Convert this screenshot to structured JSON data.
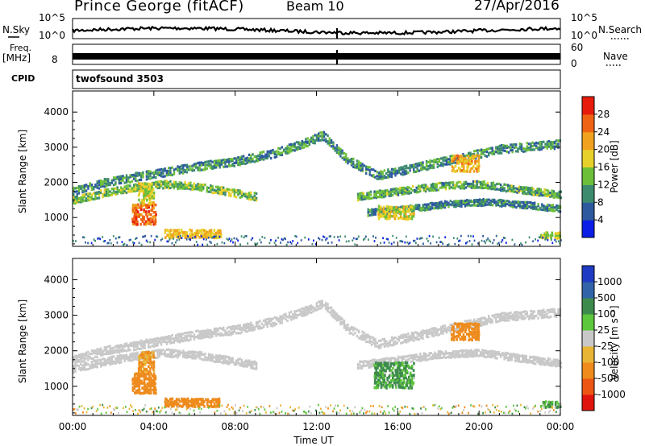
{
  "header": {
    "station": "Prince George (fitACF)",
    "beam": "Beam 10",
    "date": "27/Apr/2016"
  },
  "strips": {
    "nsky_label": "N.Sky",
    "nsky_ticks": [
      "10^5",
      "10^0"
    ],
    "nsearch_label": "N.Search",
    "nsearch_ticks": [
      "10^5",
      "10^0"
    ],
    "freq_label": "Freq.",
    "freq_unit": "[MHz]",
    "freq_ticks": [
      "8"
    ],
    "nave_label": "Nave",
    "nave_ticks": [
      "60",
      "0"
    ],
    "cpid_label": "CPID",
    "cpid_value": "twofsound 3503"
  },
  "axes": {
    "ylabel": "Slant Range [km]",
    "xlabel": "Time UT",
    "y_ticks": [
      "1000",
      "2000",
      "3000",
      "4000"
    ],
    "x_ticks": [
      "00:00",
      "04:00",
      "08:00",
      "12:00",
      "16:00",
      "20:00",
      "00:00"
    ]
  },
  "colorbars": {
    "power": {
      "label": "Power [dB]",
      "ticks": [
        "4",
        "8",
        "12",
        "16",
        "20",
        "24",
        "28"
      ],
      "colors": [
        "#0a1ee6",
        "#2d5a9e",
        "#3d8b6e",
        "#6dbf3a",
        "#e8d02a",
        "#f0a21e",
        "#ee6414",
        "#e61b0c"
      ]
    },
    "velocity": {
      "label": "Velocity [m s⁻¹]",
      "ticks": [
        "1000",
        "500",
        "100",
        "25",
        "-25",
        "-100",
        "-500",
        "-1000"
      ],
      "colors": [
        "#1f3bc4",
        "#3163a8",
        "#3d8b4c",
        "#5cc63c",
        "#c8c8c8",
        "#e9b534",
        "#ee8b1c",
        "#ec5514",
        "#e0140e"
      ]
    }
  },
  "chart_data": [
    {
      "type": "heatmap",
      "title": "Power",
      "xlabel": "Time UT",
      "ylabel": "Slant Range [km]",
      "xlim": [
        "00:00",
        "24:00"
      ],
      "ylim": [
        180,
        4600
      ],
      "colorbar_label": "Power [dB]",
      "colorbar_range": [
        0,
        32
      ],
      "bands": [
        {
          "x": [
            0.0,
            1.5,
            3.0,
            4.5,
            6.0,
            8.0,
            10.0,
            11.5,
            12.3,
            13.5,
            15.0,
            17.0,
            19.0,
            21.0,
            24.0
          ],
          "y": [
            1750,
            2000,
            2150,
            2300,
            2450,
            2600,
            2850,
            3150,
            3350,
            2650,
            2200,
            2450,
            2700,
            2950,
            3100
          ],
          "width_km": 260,
          "value": 10
        },
        {
          "x": [
            0.0,
            1.5,
            3.0,
            4.5,
            6.0,
            7.5,
            9.0
          ],
          "y": [
            1500,
            1700,
            1850,
            1950,
            1900,
            1750,
            1600
          ],
          "width_km": 230,
          "value": 14
        },
        {
          "x": [
            14.0,
            16.0,
            18.0,
            20.0,
            22.0,
            24.0
          ],
          "y": [
            1600,
            1750,
            1900,
            1950,
            1800,
            1650
          ],
          "width_km": 220,
          "value": 12
        },
        {
          "x": [
            14.5,
            16.5,
            18.5,
            20.5,
            22.5,
            24.0
          ],
          "y": [
            1150,
            1250,
            1400,
            1450,
            1350,
            1250
          ],
          "width_km": 200,
          "value": 9
        }
      ],
      "patches": [
        {
          "x": [
            2.9,
            4.1
          ],
          "y": [
            800,
            1400
          ],
          "value": 26
        },
        {
          "x": [
            3.2,
            4.0
          ],
          "y": [
            1400,
            2000
          ],
          "value": 17
        },
        {
          "x": [
            4.5,
            7.3
          ],
          "y": [
            420,
            680
          ],
          "value": 20
        },
        {
          "x": [
            15.0,
            16.8
          ],
          "y": [
            950,
            1350
          ],
          "value": 18
        },
        {
          "x": [
            18.6,
            20.0
          ],
          "y": [
            2300,
            2800
          ],
          "value": 21
        },
        {
          "x": [
            23.0,
            24.0
          ],
          "y": [
            400,
            600
          ],
          "value": 16
        }
      ]
    },
    {
      "type": "heatmap",
      "title": "Velocity",
      "xlabel": "Time UT",
      "ylabel": "Slant Range [km]",
      "xlim": [
        "00:00",
        "24:00"
      ],
      "ylim": [
        180,
        4600
      ],
      "colorbar_label": "Velocity [m s⁻¹]",
      "colorbar_range": [
        -1000,
        1000
      ],
      "bands": [
        {
          "x": [
            0.0,
            1.5,
            3.0,
            4.5,
            6.0,
            8.0,
            10.0,
            11.5,
            12.3,
            13.5,
            15.0,
            17.0,
            19.0,
            21.0,
            24.0
          ],
          "y": [
            1750,
            2000,
            2150,
            2300,
            2450,
            2600,
            2850,
            3150,
            3350,
            2650,
            2200,
            2450,
            2700,
            2950,
            3100
          ],
          "width_km": 260,
          "value": 0
        },
        {
          "x": [
            0.0,
            1.5,
            3.0,
            4.5,
            6.0,
            7.5,
            9.0
          ],
          "y": [
            1500,
            1700,
            1850,
            1950,
            1900,
            1750,
            1600
          ],
          "width_km": 230,
          "value": 0
        },
        {
          "x": [
            14.0,
            16.0,
            18.0,
            20.0,
            22.0,
            24.0
          ],
          "y": [
            1600,
            1750,
            1900,
            1950,
            1800,
            1650
          ],
          "width_km": 220,
          "value": 0
        }
      ],
      "patches": [
        {
          "x": [
            2.9,
            4.1
          ],
          "y": [
            800,
            1400
          ],
          "value": -400
        },
        {
          "x": [
            3.2,
            4.0
          ],
          "y": [
            1400,
            2000
          ],
          "value": -150
        },
        {
          "x": [
            4.5,
            7.3
          ],
          "y": [
            420,
            680
          ],
          "value": -300
        },
        {
          "x": [
            14.8,
            16.8
          ],
          "y": [
            950,
            1700
          ],
          "value": 120
        },
        {
          "x": [
            18.6,
            20.0
          ],
          "y": [
            2300,
            2800
          ],
          "value": -300
        },
        {
          "x": [
            23.0,
            24.0
          ],
          "y": [
            400,
            600
          ],
          "value": 60
        }
      ]
    }
  ]
}
